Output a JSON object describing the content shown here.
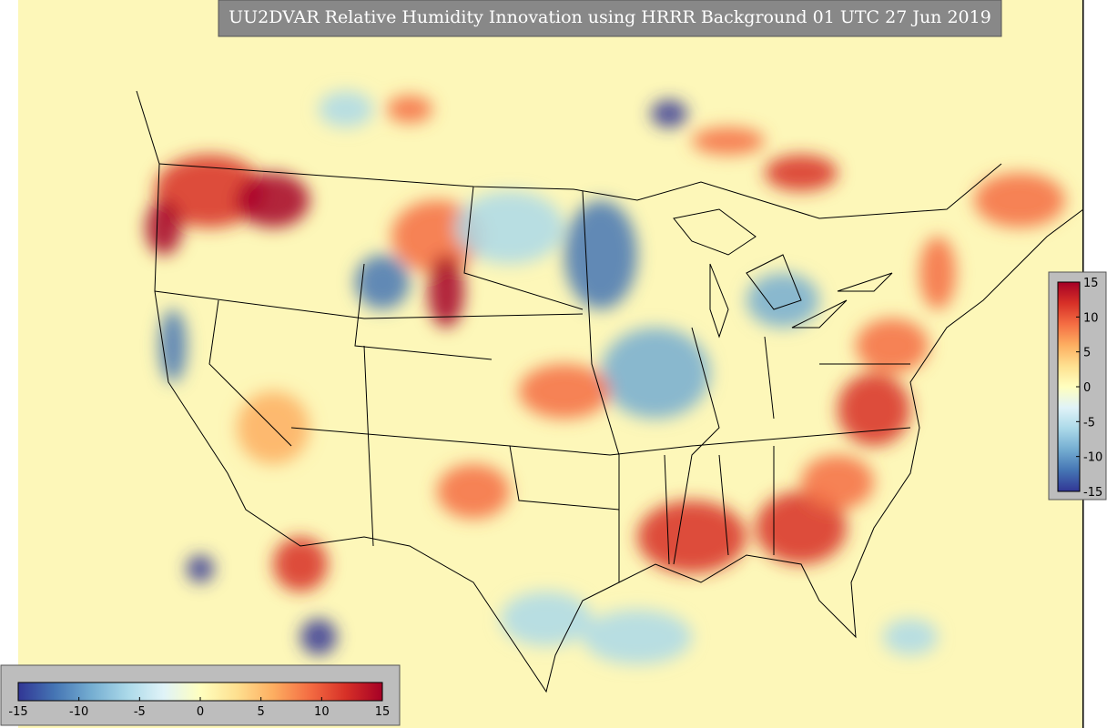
{
  "title": "UU2DVAR Relative Humidity Innovation using HRRR Background 01 UTC 27 Jun 2019",
  "horizontal_colorbar": {
    "lim": [
      -15,
      15
    ],
    "ticks": [
      -15,
      -10,
      -5,
      0,
      5,
      10,
      15
    ]
  },
  "vertical_colorbar": {
    "lim": [
      -15,
      15
    ],
    "ticks": [
      15,
      10,
      5,
      0,
      -5,
      -10,
      -15
    ]
  }
}
